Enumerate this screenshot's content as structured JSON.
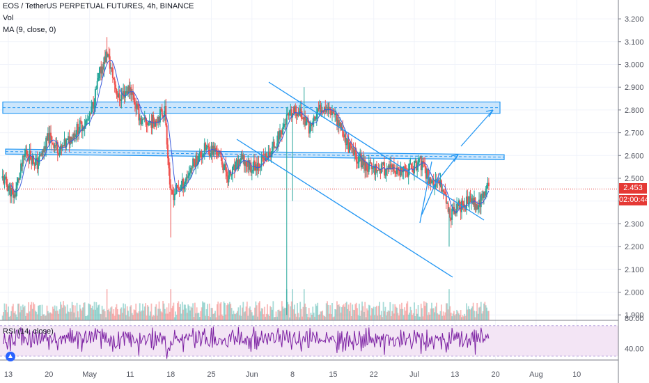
{
  "header": {
    "symbol": "EOS / TetherUS PERPETUAL FUTURES, 4h, BINANCE",
    "vol": "Vol",
    "ma": "MA (9, close, 0)",
    "rsi": "RSI (14, close)"
  },
  "price_tag": {
    "value": "2.453",
    "countdown": "02:00:44"
  },
  "colors": {
    "up": "#26a69a",
    "down": "#ef5350",
    "ma": "#3b5bdb",
    "drawing": "#2196f3",
    "zone_fill": "#bbdefb",
    "rsi_line": "#7b1fa2",
    "rsi_band": "#f3e5f5",
    "price_line": "#e53935",
    "axis_text": "#50535e"
  },
  "chart_data": [
    {
      "type": "candlestick",
      "name": "EOS / TetherUS PERPETUAL FUTURES, 4h, BINANCE",
      "y_axis_ticks": [
        "3.200",
        "3.100",
        "3.000",
        "2.900",
        "2.800",
        "2.700",
        "2.600",
        "2.500",
        "2.400",
        "2.300",
        "2.200",
        "2.100",
        "2.000",
        "1.900"
      ],
      "ylim": [
        1.87,
        3.21
      ],
      "x_axis_ticks": [
        "13",
        "20",
        "May",
        "11",
        "18",
        "25",
        "Jun",
        "8",
        "15",
        "22",
        "Jul",
        "13",
        "20",
        "Aug",
        "10"
      ],
      "last_price": 2.453,
      "price_path": [
        {
          "date": "Apr 12",
          "price": 2.5
        },
        {
          "date": "Apr 14",
          "price": 2.42
        },
        {
          "date": "Apr 16",
          "price": 2.62
        },
        {
          "date": "Apr 18",
          "price": 2.56
        },
        {
          "date": "Apr 20",
          "price": 2.68
        },
        {
          "date": "Apr 22",
          "price": 2.62
        },
        {
          "date": "Apr 25",
          "price": 2.72
        },
        {
          "date": "Apr 27",
          "price": 2.76
        },
        {
          "date": "Apr 29",
          "price": 2.98
        },
        {
          "date": "Apr 30",
          "price": 3.05
        },
        {
          "date": "May 2",
          "price": 2.85
        },
        {
          "date": "May 4",
          "price": 2.9
        },
        {
          "date": "May 6",
          "price": 2.74
        },
        {
          "date": "May 8",
          "price": 2.75
        },
        {
          "date": "May 10",
          "price": 2.8
        },
        {
          "date": "May 11",
          "price": 2.42
        },
        {
          "date": "May 13",
          "price": 2.47
        },
        {
          "date": "May 15",
          "price": 2.57
        },
        {
          "date": "May 17",
          "price": 2.63
        },
        {
          "date": "May 19",
          "price": 2.62
        },
        {
          "date": "May 21",
          "price": 2.5
        },
        {
          "date": "May 23",
          "price": 2.58
        },
        {
          "date": "May 25",
          "price": 2.55
        },
        {
          "date": "May 28",
          "price": 2.6
        },
        {
          "date": "May 31",
          "price": 2.76
        },
        {
          "date": "Jun 2",
          "price": 2.8
        },
        {
          "date": "Jun 4",
          "price": 2.72
        },
        {
          "date": "Jun 6",
          "price": 2.82
        },
        {
          "date": "Jun 8",
          "price": 2.8
        },
        {
          "date": "Jun 11",
          "price": 2.62
        },
        {
          "date": "Jun 14",
          "price": 2.55
        },
        {
          "date": "Jun 17",
          "price": 2.54
        },
        {
          "date": "Jun 20",
          "price": 2.52
        },
        {
          "date": "Jun 23",
          "price": 2.57
        },
        {
          "date": "Jun 25",
          "price": 2.48
        },
        {
          "date": "Jun 27",
          "price": 2.46
        },
        {
          "date": "Jun 28",
          "price": 2.34
        },
        {
          "date": "Jun 30",
          "price": 2.38
        },
        {
          "date": "Jul 2",
          "price": 2.4
        },
        {
          "date": "Jul 3",
          "price": 2.38
        },
        {
          "date": "Jul 5",
          "price": 2.48
        }
      ],
      "annotations": {
        "resistance_zones": [
          {
            "from": 2.785,
            "to": 2.835
          },
          {
            "from": 2.594,
            "to": 2.616
          }
        ],
        "price_line": 2.453
      }
    },
    {
      "type": "line",
      "name": "RSI (14, close)",
      "y_axis_ticks": [
        "80.00",
        "40.00"
      ],
      "band": [
        30,
        70
      ]
    }
  ]
}
